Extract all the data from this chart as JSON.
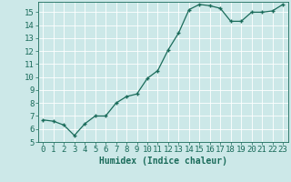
{
  "x": [
    0,
    1,
    2,
    3,
    4,
    5,
    6,
    7,
    8,
    9,
    10,
    11,
    12,
    13,
    14,
    15,
    16,
    17,
    18,
    19,
    20,
    21,
    22,
    23
  ],
  "y": [
    6.7,
    6.6,
    6.3,
    5.5,
    6.4,
    7.0,
    7.0,
    8.0,
    8.5,
    8.7,
    9.9,
    10.5,
    12.1,
    13.4,
    15.2,
    15.6,
    15.5,
    15.3,
    14.3,
    14.3,
    15.0,
    15.0,
    15.1,
    15.6
  ],
  "line_color": "#1a6b5a",
  "marker": "+",
  "marker_size": 3.5,
  "line_width": 0.9,
  "bg_color": "#cce8e8",
  "grid_color": "#b0d0d0",
  "xlabel": "Humidex (Indice chaleur)",
  "xlabel_fontsize": 7,
  "tick_color": "#1a6b5a",
  "tick_fontsize": 6.5,
  "xlim": [
    -0.5,
    23.5
  ],
  "ylim": [
    5,
    15.8
  ],
  "yticks": [
    5,
    6,
    7,
    8,
    9,
    10,
    11,
    12,
    13,
    14,
    15
  ],
  "xticks": [
    0,
    1,
    2,
    3,
    4,
    5,
    6,
    7,
    8,
    9,
    10,
    11,
    12,
    13,
    14,
    15,
    16,
    17,
    18,
    19,
    20,
    21,
    22,
    23
  ]
}
